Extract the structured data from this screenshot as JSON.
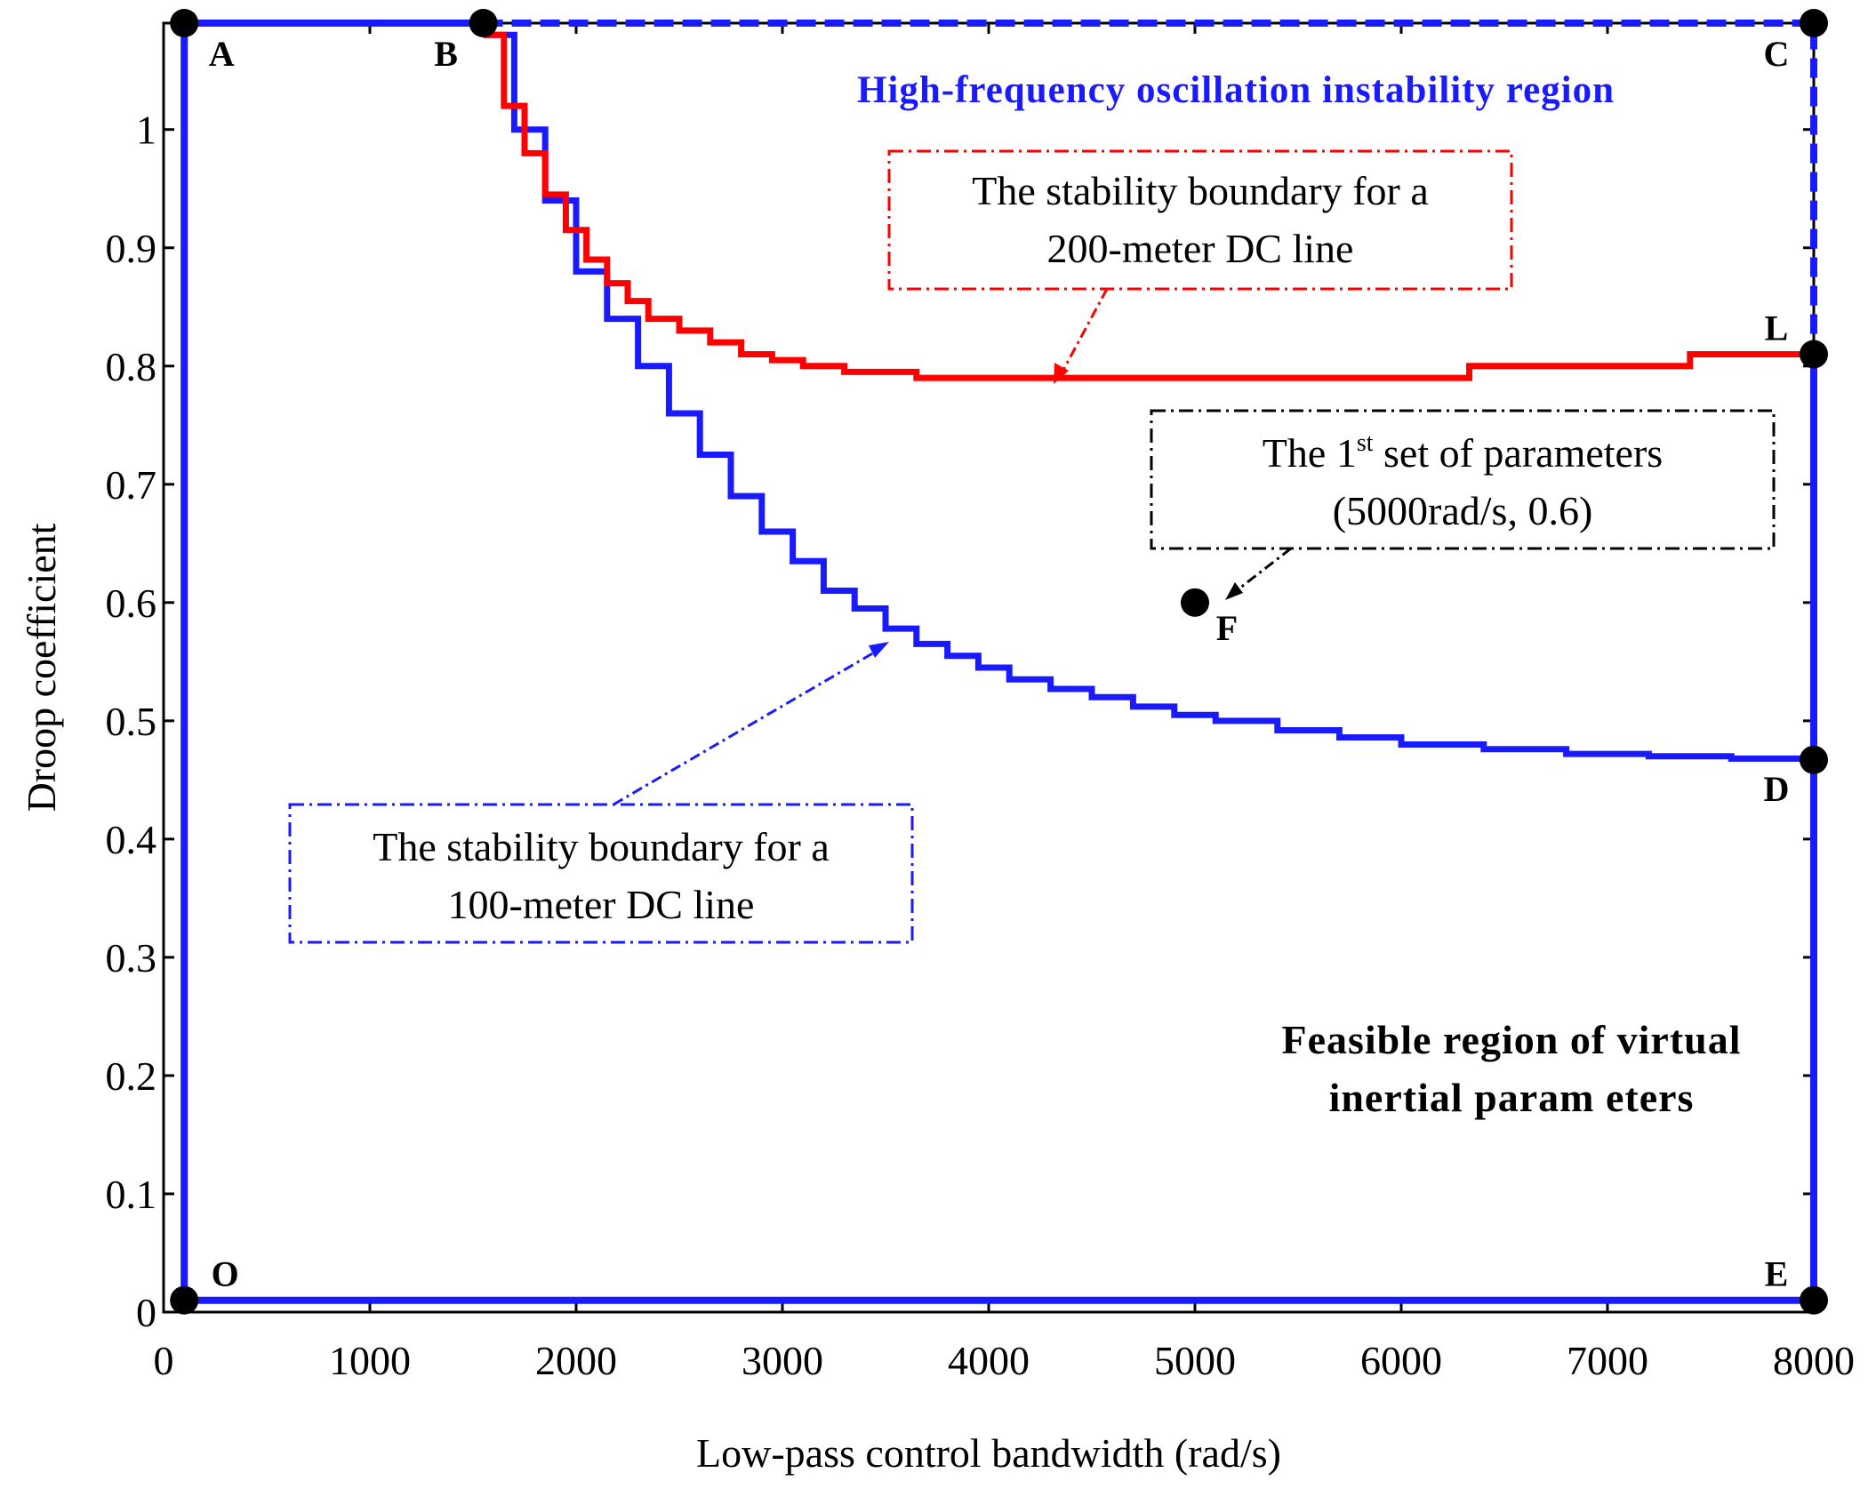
{
  "chart_data": {
    "type": "line",
    "title": "",
    "xlabel": "Low-pass control bandwidth (rad/s)",
    "ylabel": "Droop coefficient",
    "xlim": [
      0,
      8000
    ],
    "ylim": [
      0,
      1.09
    ],
    "xticks": [
      0,
      1000,
      2000,
      3000,
      4000,
      5000,
      6000,
      7000,
      8000
    ],
    "xtick_labels": [
      "0",
      "1000",
      "2000",
      "3000",
      "4000",
      "5000",
      "6000",
      "7000",
      "8000"
    ],
    "yticks": [
      0,
      0.1,
      0.2,
      0.3,
      0.4,
      0.5,
      0.6,
      0.7,
      0.8,
      0.9,
      1
    ],
    "ytick_labels": [
      "0",
      "0.1",
      "0.2",
      "0.3",
      "0.4",
      "0.5",
      "0.6",
      "0.7",
      "0.8",
      "0.9",
      "1"
    ],
    "grid": false,
    "colors": {
      "blue": "#1a1aff",
      "red": "#ff0000",
      "black": "#000000"
    },
    "series": [
      {
        "name": "The stability boundary for a 100-meter DC line",
        "color": "#1a1aff",
        "style": "step",
        "x": [
          1550,
          1700,
          1850,
          2000,
          2150,
          2300,
          2450,
          2600,
          2750,
          2900,
          3050,
          3200,
          3350,
          3500,
          3650,
          3800,
          3950,
          4100,
          4300,
          4500,
          4700,
          4900,
          5100,
          5400,
          5700,
          6000,
          6400,
          6800,
          7200,
          7600,
          8000
        ],
        "y": [
          1.08,
          1.0,
          0.94,
          0.88,
          0.84,
          0.8,
          0.76,
          0.725,
          0.69,
          0.66,
          0.635,
          0.61,
          0.595,
          0.578,
          0.565,
          0.555,
          0.545,
          0.535,
          0.527,
          0.52,
          0.512,
          0.505,
          0.5,
          0.492,
          0.486,
          0.48,
          0.476,
          0.472,
          0.47,
          0.468,
          0.467
        ]
      },
      {
        "name": "The stability boundary for a 200-meter DC line",
        "color": "#ff0000",
        "style": "step",
        "x": [
          1550,
          1650,
          1750,
          1850,
          1950,
          2050,
          2150,
          2250,
          2350,
          2500,
          2650,
          2800,
          2950,
          3100,
          3300,
          3650,
          4000,
          4500,
          5000,
          5500,
          6000,
          6330,
          7000,
          7400,
          8000
        ],
        "y": [
          1.08,
          1.02,
          0.98,
          0.945,
          0.915,
          0.89,
          0.87,
          0.855,
          0.84,
          0.83,
          0.82,
          0.81,
          0.805,
          0.8,
          0.795,
          0.79,
          0.79,
          0.79,
          0.79,
          0.79,
          0.79,
          0.8,
          0.8,
          0.81,
          0.81
        ]
      }
    ],
    "boundary": {
      "name": "Feasible region boundary",
      "color": "#1a1aff",
      "solid_path": [
        [
          1550,
          1.09
        ],
        [
          100,
          1.09
        ],
        [
          100,
          0.01
        ],
        [
          8000,
          0.01
        ],
        [
          8000,
          0.81
        ]
      ],
      "dashed_path": [
        [
          1550,
          1.09
        ],
        [
          8000,
          1.09
        ],
        [
          8000,
          0.81
        ]
      ]
    },
    "points": [
      {
        "label": "A",
        "x": 100,
        "y": 1.09
      },
      {
        "label": "B",
        "x": 1550,
        "y": 1.09
      },
      {
        "label": "C",
        "x": 8000,
        "y": 1.09
      },
      {
        "label": "L",
        "x": 8000,
        "y": 0.81
      },
      {
        "label": "D",
        "x": 8000,
        "y": 0.467
      },
      {
        "label": "E",
        "x": 8000,
        "y": 0.01
      },
      {
        "label": "O",
        "x": 100,
        "y": 0.01
      },
      {
        "label": "F",
        "x": 5000,
        "y": 0.6
      }
    ],
    "annotations": {
      "region_high": "High-frequency oscillation instability region",
      "region_feasible_line1": "Feasible region of virtual",
      "region_feasible_line2": "inertial param eters",
      "callout_200_line1": "The stability boundary for a",
      "callout_200_line2": "200-meter DC line",
      "callout_100_line1": "The stability boundary for a",
      "callout_100_line2": "100-meter DC line",
      "callout_f_prefix": "The 1",
      "callout_f_sup": "st",
      "callout_f_suffix": " set of parameters",
      "callout_f_line2": "(5000rad/s, 0.6)"
    }
  }
}
